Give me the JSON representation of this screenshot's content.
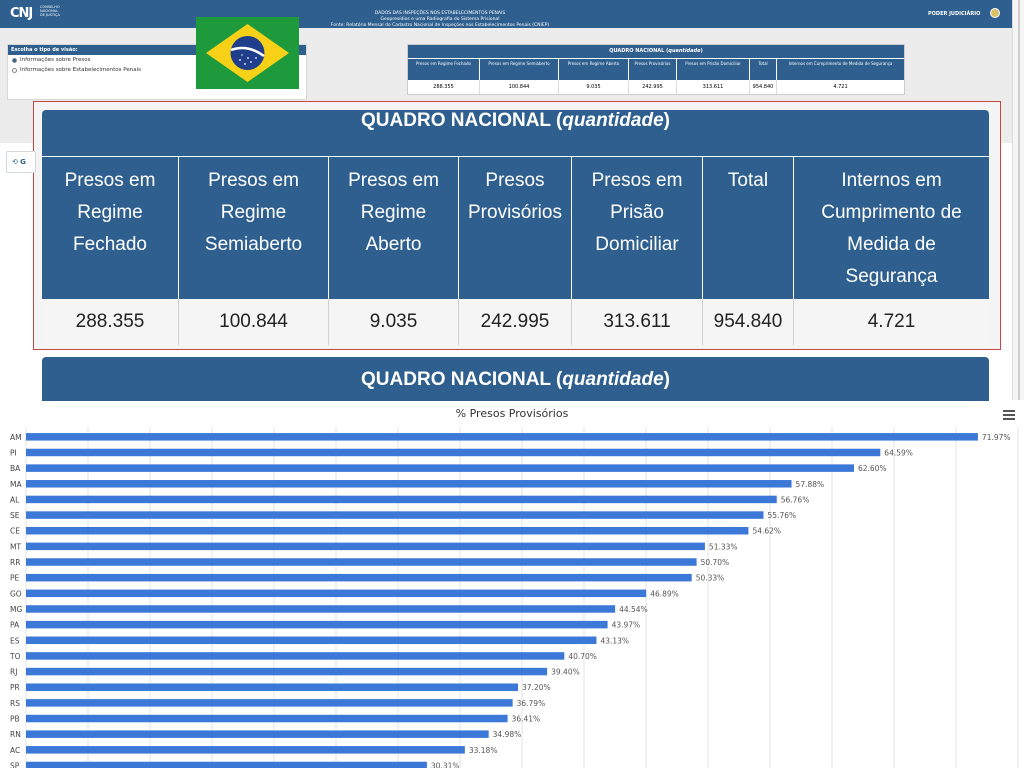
{
  "header": {
    "logo": "CNJ",
    "logo_sub": "CONSELHO NACIONAL DE JUSTIÇA",
    "line1": "DADOS DAS INSPEÇÕES NOS ESTABELECIMENTOS PENAIS",
    "line2": "Geopresídios e uma Radiografia do Sistema Prisional",
    "line3": "Fonte: Relatório Mensal do Cadastro Nacional de Inspeções nos Estabelecimentos Penais (CNIEP)",
    "right": "PODER JUDICIÁRIO"
  },
  "view_selector": {
    "title": "Escolha o tipo de visão:",
    "options": [
      "Informações sobre Presos",
      "Informações sobre Estabelecimentos Penais"
    ],
    "selected": 0
  },
  "quadro": {
    "title_main": "QUADRO NACIONAL (",
    "title_em": "quantidade",
    "title_end": ")",
    "headers": [
      "Presos em Regime Fechado",
      "Presos em Regime Semiaberto",
      "Presos em Regime Aberto",
      "Presos Provisórios",
      "Presos em Prisão Domiciliar",
      "Total",
      "Internos em Cumprimento de Medida de Segurança"
    ],
    "values": [
      "288.355",
      "100.844",
      "9.035",
      "242.995",
      "313.611",
      "954.840",
      "4.721"
    ]
  },
  "left_button": "G",
  "colors": {
    "primary": "#2e5f8e",
    "bar": "#3b78d8",
    "flag_green": "#1e9a3c",
    "flag_yellow": "#f7d117",
    "flag_blue": "#1f3f8c"
  },
  "chart_data": {
    "type": "bar",
    "orientation": "horizontal",
    "title": "% Presos Provisórios",
    "categories": [
      "AM",
      "PI",
      "BA",
      "MA",
      "AL",
      "SE",
      "CE",
      "MT",
      "RR",
      "PE",
      "GO",
      "MG",
      "PA",
      "ES",
      "TO",
      "RJ",
      "PR",
      "RS",
      "PB",
      "RN",
      "AC",
      "SP"
    ],
    "values": [
      71.97,
      64.59,
      62.6,
      57.88,
      56.76,
      55.76,
      54.62,
      51.33,
      50.7,
      50.33,
      46.89,
      44.54,
      43.97,
      43.13,
      40.7,
      39.4,
      37.2,
      36.79,
      36.41,
      34.98,
      33.18,
      30.31
    ],
    "labels": [
      "71.97%",
      "64.59%",
      "62.60%",
      "57.88%",
      "56.76%",
      "55.76%",
      "54.62%",
      "51.33%",
      "50.70%",
      "50.33%",
      "46.89%",
      "44.54%",
      "43.97%",
      "43.13%",
      "40.70%",
      "39.40%",
      "37.20%",
      "36.79%",
      "36.41%",
      "34.98%",
      "33.18%",
      "30.31%"
    ],
    "xlim": [
      0,
      75
    ],
    "grid": true
  }
}
